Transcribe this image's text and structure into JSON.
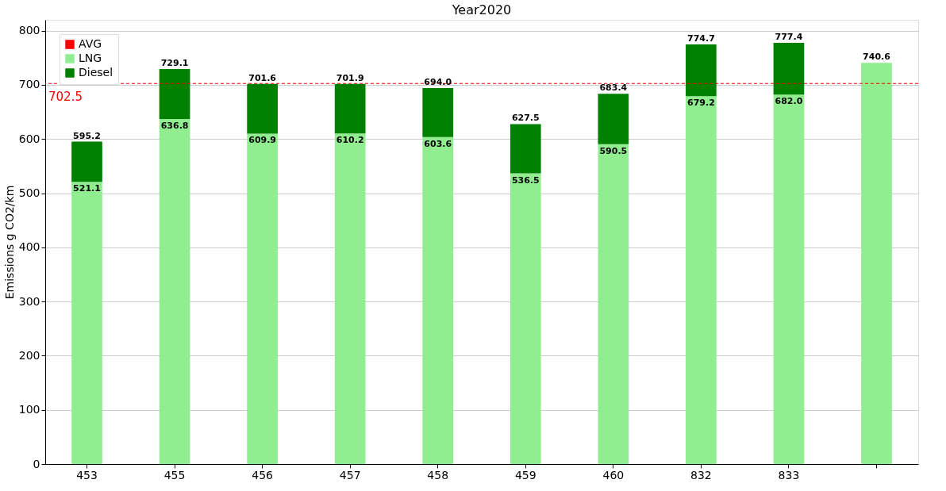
{
  "chart_data": {
    "type": "bar",
    "title": "Year2020",
    "ylabel": "Emissions g CO2/km",
    "categories": [
      "453",
      "455",
      "456",
      "457",
      "458",
      "459",
      "460",
      "832",
      "833",
      null
    ],
    "stacked": true,
    "series": [
      {
        "name": "LNG",
        "color": "#90ee90",
        "values": [
          521.1,
          636.8,
          609.9,
          610.2,
          603.6,
          536.5,
          590.5,
          679.2,
          682.0,
          740.6
        ],
        "value_labels": [
          "521.1",
          "636.8",
          "609.9",
          "610.2",
          "603.6",
          "536.5",
          "590.5",
          "679.2",
          "682.0",
          "740.6"
        ]
      },
      {
        "name": "Diesel",
        "color": "#008000",
        "values": [
          74.1,
          92.3,
          91.7,
          91.7,
          90.4,
          91.0,
          92.9,
          95.5,
          95.4,
          null
        ]
      }
    ],
    "totals": [
      "595.2",
      "729.1",
      "701.6",
      "701.9",
      "694.0",
      "627.5",
      "683.4",
      "774.7",
      "777.4",
      null
    ],
    "ref_lines": [
      {
        "axis": "y",
        "value": 702.5,
        "label": "AVG",
        "color": "#ff0000",
        "line_style": "dashed"
      }
    ],
    "annotations": [
      {
        "text": "702.5",
        "y": 702.5
      }
    ],
    "ylim": [
      0,
      820
    ],
    "yticks": [
      0,
      100,
      200,
      300,
      400,
      500,
      600,
      700,
      800
    ],
    "grid": "y",
    "legend": "top left"
  }
}
